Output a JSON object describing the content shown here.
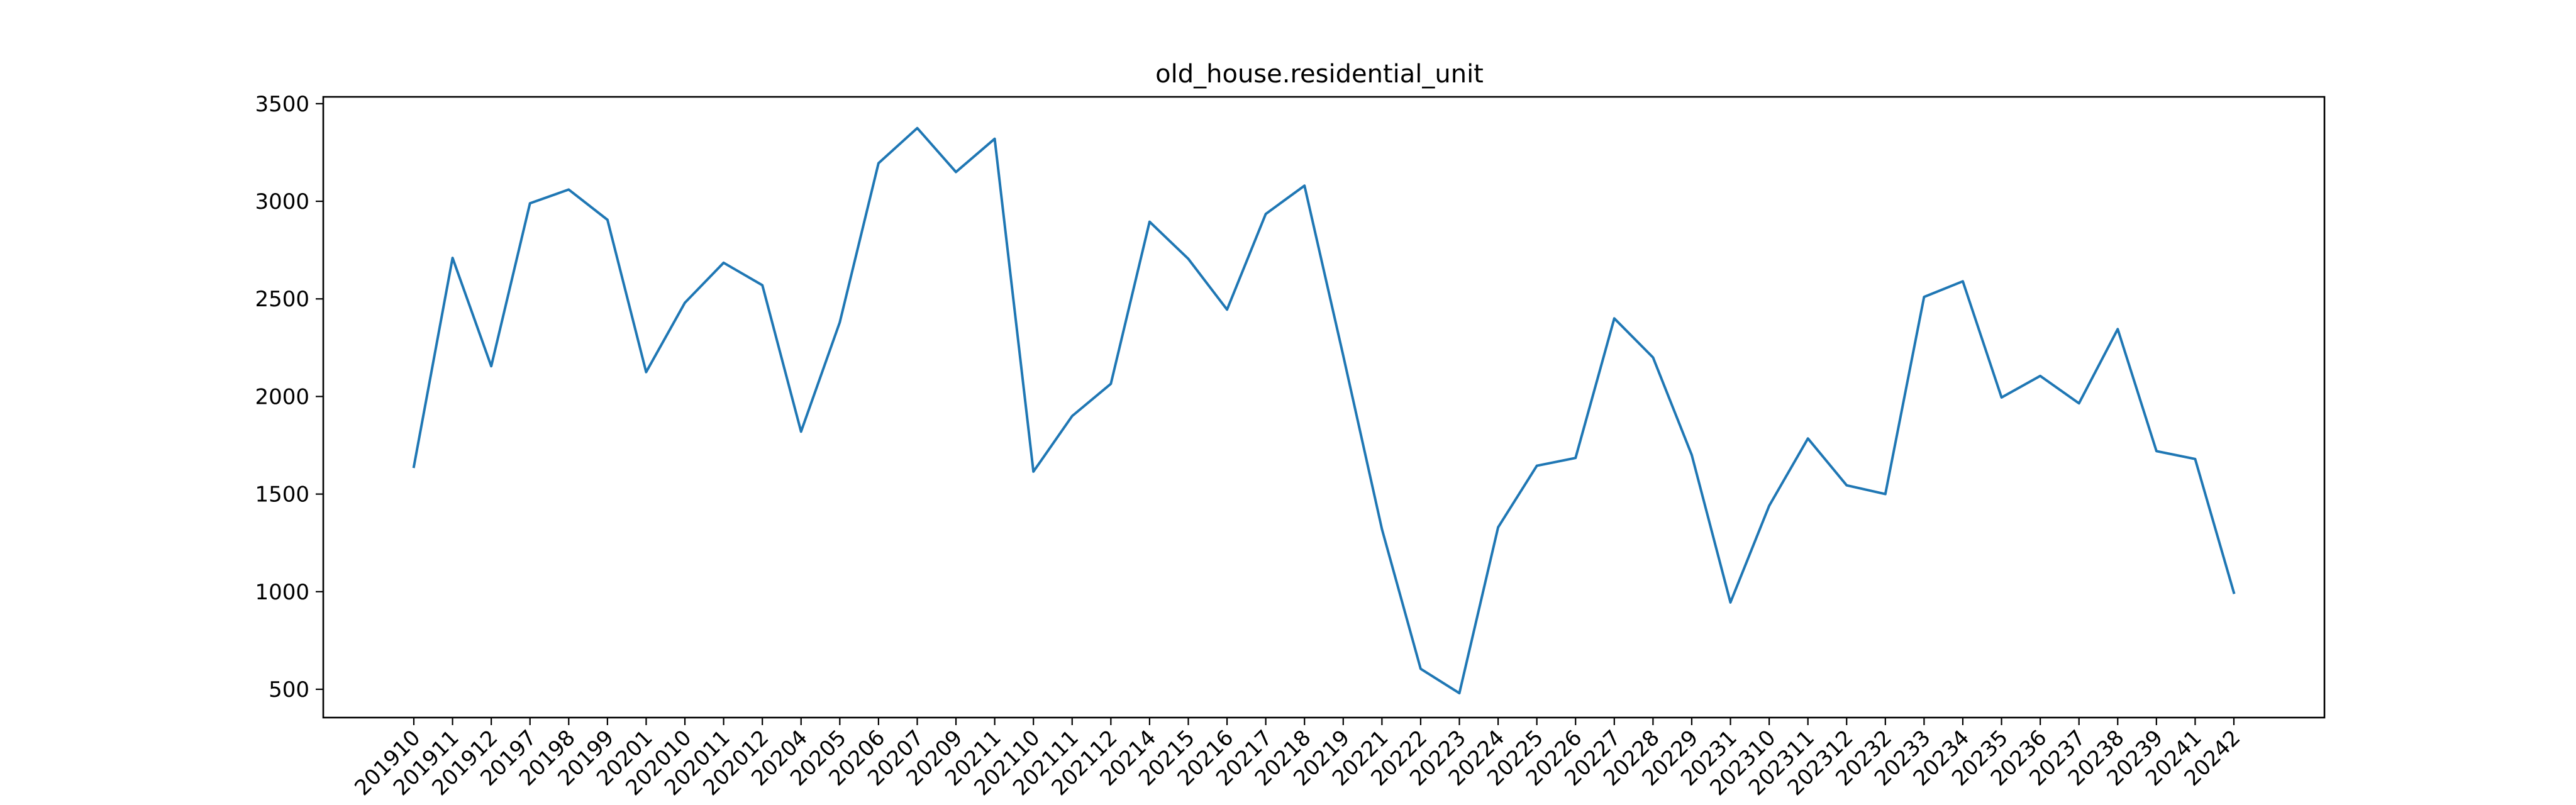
{
  "chart_data": {
    "type": "line",
    "title": "old_house.residential_unit",
    "xlabel": "",
    "ylabel": "",
    "grid": false,
    "legend": false,
    "ylim": [
      355,
      3535
    ],
    "yticks": [
      500,
      1000,
      1500,
      2000,
      2500,
      3000,
      3500
    ],
    "categories": [
      "201910",
      "201911",
      "201912",
      "20197",
      "20198",
      "20199",
      "20201",
      "202010",
      "202011",
      "202012",
      "20204",
      "20205",
      "20206",
      "20207",
      "20209",
      "20211",
      "202110",
      "202111",
      "202112",
      "20214",
      "20215",
      "20216",
      "20217",
      "20218",
      "20219",
      "20221",
      "20222",
      "20223",
      "20224",
      "20225",
      "20226",
      "20227",
      "20228",
      "20229",
      "20231",
      "202310",
      "202311",
      "202312",
      "20232",
      "20233",
      "20234",
      "20235",
      "20236",
      "20237",
      "20238",
      "20239",
      "20241",
      "20242"
    ],
    "series": [
      {
        "color": "#1f77b4",
        "values": [
          1640,
          2710,
          2155,
          2990,
          3060,
          2905,
          2125,
          2480,
          2685,
          2570,
          1820,
          2380,
          3195,
          3375,
          3150,
          3320,
          1615,
          1900,
          2065,
          2895,
          2705,
          2445,
          2935,
          3080,
          2210,
          1320,
          605,
          480,
          1330,
          1645,
          1685,
          2400,
          2200,
          1700,
          945,
          1440,
          1785,
          1545,
          1500,
          2510,
          2590,
          1995,
          2105,
          1965,
          2345,
          1720,
          1680,
          995
        ]
      }
    ]
  }
}
